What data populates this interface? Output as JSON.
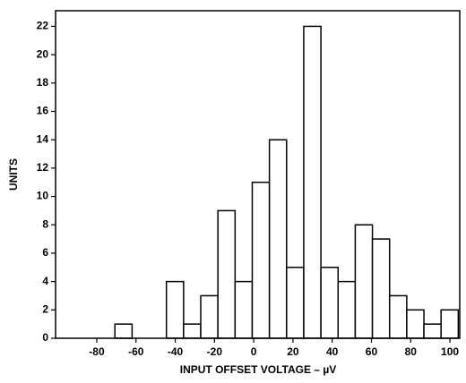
{
  "chart_data": {
    "type": "histogram",
    "xlabel": "INPUT OFFSET VOLTAGE – µV",
    "ylabel": "UNITS",
    "bins": [
      -70.75,
      -62,
      -53.25,
      -44.5,
      -35.75,
      -27,
      -18.25,
      -9.5,
      -0.75,
      8,
      16.75,
      25.5,
      34.25,
      43,
      51.75,
      60.5,
      69.25,
      78,
      86.75,
      95.5,
      104.25
    ],
    "values": [
      1,
      0,
      0,
      4,
      1,
      3,
      9,
      4,
      11,
      14,
      5,
      22,
      5,
      4,
      8,
      7,
      3,
      2,
      1,
      2
    ],
    "color": "#ffffff",
    "xlim": [
      -101,
      105
    ],
    "xticks": [
      -80,
      -60,
      -40,
      -20,
      0,
      20,
      40,
      60,
      80,
      100
    ],
    "ylim": [
      0,
      23.1
    ],
    "yticks": [
      0,
      2,
      4,
      6,
      8,
      10,
      12,
      14,
      16,
      18,
      20,
      22
    ]
  }
}
